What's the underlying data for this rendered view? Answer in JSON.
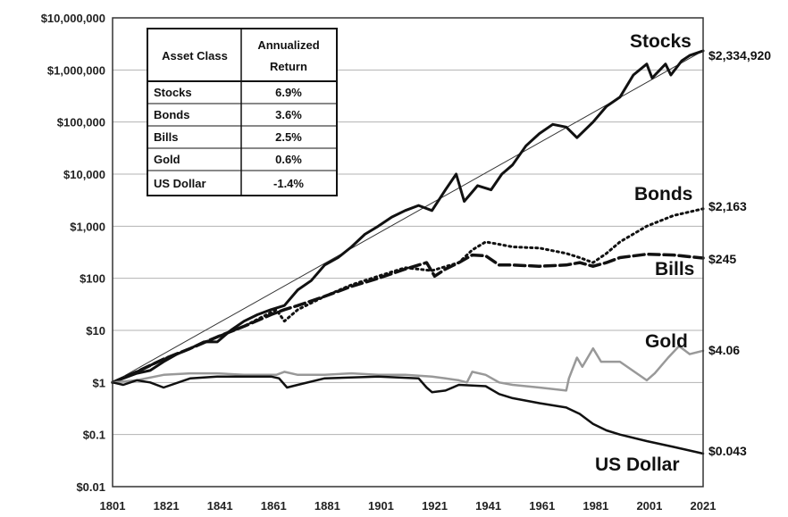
{
  "chart_data": {
    "type": "line",
    "y_scale": "log",
    "ylim": [
      0.01,
      10000000
    ],
    "xlim": [
      1801,
      2021
    ],
    "grid": true,
    "x_ticks": [
      "1801",
      "1821",
      "1841",
      "1861",
      "1881",
      "1901",
      "1921",
      "1941",
      "1961",
      "1981",
      "2001",
      "2021"
    ],
    "y_ticks": [
      {
        "value": 10000000,
        "label": "$10,000,000"
      },
      {
        "value": 1000000,
        "label": "$1,000,000"
      },
      {
        "value": 100000,
        "label": "$100,000"
      },
      {
        "value": 10000,
        "label": "$10,000"
      },
      {
        "value": 1000,
        "label": "$1,000"
      },
      {
        "value": 100,
        "label": "$100"
      },
      {
        "value": 10,
        "label": "$10"
      },
      {
        "value": 1,
        "label": "$1"
      },
      {
        "value": 0.1,
        "label": "$0.1"
      },
      {
        "value": 0.01,
        "label": "$0.01"
      }
    ],
    "series": [
      {
        "name": "Stocks",
        "end_label": "$2,334,920",
        "color": "#111111",
        "style": "solid-thick",
        "x": [
          1801,
          1805,
          1810,
          1815,
          1820,
          1825,
          1830,
          1835,
          1840,
          1845,
          1850,
          1855,
          1860,
          1865,
          1870,
          1875,
          1880,
          1885,
          1890,
          1895,
          1900,
          1905,
          1910,
          1915,
          1920,
          1925,
          1929,
          1932,
          1937,
          1942,
          1946,
          1950,
          1955,
          1960,
          1965,
          1970,
          1974,
          1980,
          1985,
          1990,
          1995,
          2000,
          2002,
          2007,
          2009,
          2013,
          2016,
          2021
        ],
        "y": [
          1,
          1.2,
          1.5,
          1.7,
          2.5,
          3.5,
          4.5,
          6,
          6,
          10,
          15,
          20,
          25,
          30,
          60,
          90,
          180,
          250,
          400,
          700,
          1000,
          1500,
          2000,
          2500,
          2000,
          5000,
          10000,
          3000,
          6000,
          5000,
          10000,
          15000,
          35000,
          60000,
          90000,
          80000,
          50000,
          100000,
          200000,
          300000,
          800000,
          1300000,
          700000,
          1300000,
          800000,
          1500000,
          1900000,
          2334920
        ]
      },
      {
        "name": "Bonds",
        "end_label": "$2,163",
        "color": "#111111",
        "style": "dotted",
        "x": [
          1801,
          1810,
          1820,
          1830,
          1840,
          1850,
          1862,
          1865,
          1870,
          1880,
          1890,
          1900,
          1910,
          1920,
          1930,
          1935,
          1940,
          1945,
          1950,
          1960,
          1970,
          1975,
          1980,
          1985,
          1990,
          2000,
          2010,
          2021
        ],
        "y": [
          1,
          1.6,
          2.8,
          4.5,
          7.5,
          12,
          25,
          15,
          25,
          45,
          75,
          110,
          160,
          140,
          200,
          350,
          500,
          450,
          400,
          380,
          300,
          250,
          200,
          300,
          500,
          1000,
          1600,
          2163
        ]
      },
      {
        "name": "Bills",
        "end_label": "$245",
        "color": "#111111",
        "style": "dashed",
        "x": [
          1801,
          1810,
          1820,
          1830,
          1840,
          1850,
          1860,
          1865,
          1870,
          1880,
          1890,
          1900,
          1910,
          1915,
          1918,
          1921,
          1925,
          1930,
          1935,
          1940,
          1945,
          1950,
          1960,
          1970,
          1975,
          1980,
          1985,
          1990,
          2000,
          2010,
          2021
        ],
        "y": [
          1,
          1.6,
          2.8,
          4.5,
          7.5,
          12,
          20,
          25,
          30,
          45,
          70,
          100,
          150,
          180,
          200,
          110,
          150,
          200,
          280,
          270,
          180,
          180,
          170,
          180,
          200,
          170,
          200,
          250,
          290,
          280,
          245
        ]
      },
      {
        "name": "Gold",
        "end_label": "$4.06",
        "color": "#999999",
        "style": "solid",
        "x": [
          1801,
          1810,
          1820,
          1830,
          1840,
          1850,
          1862,
          1865,
          1870,
          1880,
          1890,
          1900,
          1910,
          1920,
          1925,
          1930,
          1933,
          1935,
          1940,
          1945,
          1950,
          1960,
          1970,
          1971,
          1974,
          1976,
          1980,
          1983,
          1990,
          2000,
          2003,
          2008,
          2012,
          2016,
          2021
        ],
        "y": [
          1,
          1.1,
          1.4,
          1.5,
          1.5,
          1.4,
          1.4,
          1.6,
          1.4,
          1.4,
          1.5,
          1.4,
          1.4,
          1.3,
          1.2,
          1.1,
          1,
          1.6,
          1.4,
          1,
          0.9,
          0.8,
          0.7,
          1.2,
          3,
          2,
          4.5,
          2.5,
          2.5,
          1.1,
          1.5,
          3,
          5,
          3.5,
          4.06
        ]
      },
      {
        "name": "US Dollar",
        "end_label": "$0.043",
        "color": "#111111",
        "style": "solid",
        "x": [
          1801,
          1805,
          1810,
          1815,
          1820,
          1830,
          1840,
          1850,
          1860,
          1863,
          1866,
          1870,
          1880,
          1900,
          1915,
          1918,
          1920,
          1925,
          1930,
          1940,
          1945,
          1950,
          1960,
          1970,
          1975,
          1980,
          1985,
          1990,
          2000,
          2010,
          2021
        ],
        "y": [
          1,
          0.9,
          1.1,
          1.0,
          0.8,
          1.2,
          1.3,
          1.3,
          1.3,
          1.2,
          0.8,
          0.9,
          1.2,
          1.3,
          1.2,
          0.8,
          0.65,
          0.7,
          0.9,
          0.85,
          0.6,
          0.5,
          0.4,
          0.33,
          0.25,
          0.16,
          0.12,
          0.1,
          0.075,
          0.058,
          0.043
        ]
      }
    ],
    "table": {
      "headers": [
        "Asset Class",
        "Annualized Return"
      ],
      "header_lines": [
        "Annualized",
        "Return"
      ],
      "rows": [
        [
          "Stocks",
          "6.9%"
        ],
        [
          "Bonds",
          "3.6%"
        ],
        [
          "Bills",
          "2.5%"
        ],
        [
          "Gold",
          "0.6%"
        ],
        [
          "US Dollar",
          "-1.4%"
        ]
      ]
    }
  }
}
